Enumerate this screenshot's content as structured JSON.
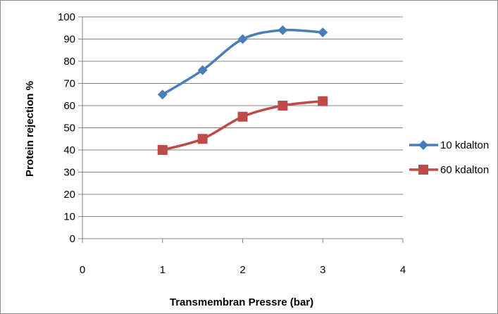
{
  "chart_data": {
    "type": "line",
    "title": "",
    "xlabel": "Transmembran Pressre (bar)",
    "ylabel": "Protein rejection %",
    "xlim": [
      0,
      4
    ],
    "ylim": [
      0,
      100
    ],
    "x_ticks": [
      "0",
      "1",
      "2",
      "3",
      "4"
    ],
    "y_ticks": [
      "0",
      "10",
      "20",
      "30",
      "40",
      "50",
      "60",
      "70",
      "80",
      "90",
      "100"
    ],
    "grid": "horizontal",
    "legend_position": "right",
    "series": [
      {
        "name": "10 kdalton",
        "color": "#4a7ebb",
        "marker": "diamond",
        "x": [
          1,
          1.5,
          2,
          2.5,
          3
        ],
        "y": [
          65,
          76,
          90,
          94,
          93
        ]
      },
      {
        "name": "60 kdalton",
        "color": "#be4b48",
        "marker": "square",
        "x": [
          1,
          1.5,
          2,
          2.5,
          3
        ],
        "y": [
          40,
          45,
          55,
          60,
          62
        ]
      }
    ]
  }
}
